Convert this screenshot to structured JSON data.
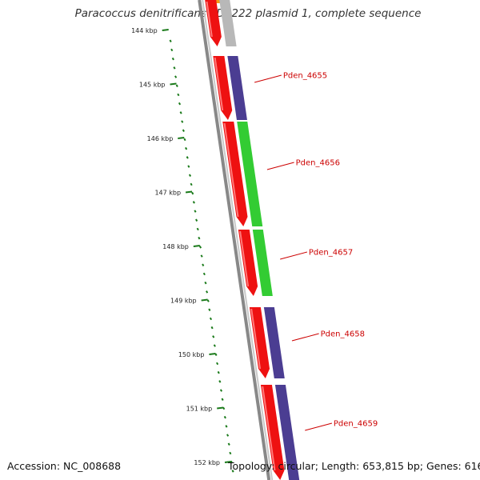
{
  "title": "Paracoccus denitrificans PD1222 plasmid 1, complete sequence",
  "accession_label": "Accession: NC_008688",
  "topology_label": "Topology: circular; Length: 653,815 bp; Genes: 616",
  "colors": {
    "backbone": "#888888",
    "tick": "#1a7a1a",
    "cds": "#ee1111",
    "cog_grey": "#b8b8b8",
    "cog_purple": "#4b3d92",
    "cog_green": "#33cc33",
    "cog_orange": "#f29a16",
    "gene_label": "#cc0000"
  },
  "kbp_ticks": [
    "144 kbp",
    "145 kbp",
    "146 kbp",
    "147 kbp",
    "148 kbp",
    "149 kbp",
    "150 kbp",
    "151 kbp",
    "152 kbp"
  ],
  "genes": [
    {
      "cog_color": "grey"
    },
    {
      "label": "Pden_4655",
      "cog_color": "purple"
    },
    {
      "label": "Pden_4656",
      "cog_color": "green"
    },
    {
      "label": "Pden_4657",
      "cog_color": "green"
    },
    {
      "label": "Pden_4658",
      "cog_color": "purple"
    },
    {
      "label": "Pden_4659",
      "cog_color": "purple"
    }
  ]
}
